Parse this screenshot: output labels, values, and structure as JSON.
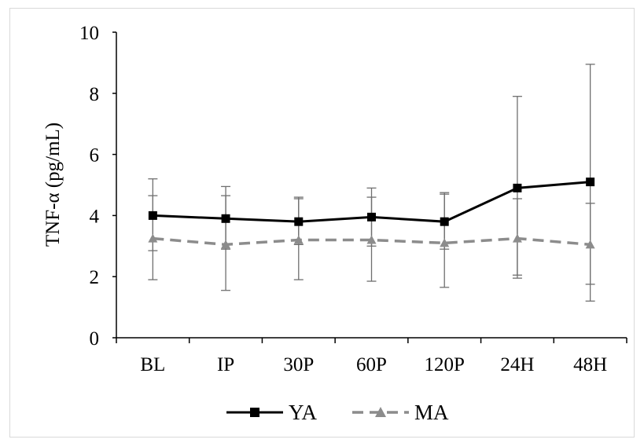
{
  "chart_data": {
    "type": "line",
    "ylabel": "TNF-α (pg/mL)",
    "xlabel": "",
    "ylim": [
      0,
      10
    ],
    "yticks": [
      0,
      2,
      4,
      6,
      8,
      10
    ],
    "categories": [
      "BL",
      "IP",
      "30P",
      "60P",
      "120P",
      "24H",
      "48H"
    ],
    "grid": false,
    "legend_position": "bottom",
    "series": [
      {
        "name": "YA",
        "color": "#000000",
        "line_style": "solid",
        "marker": "square",
        "values": [
          4.0,
          3.9,
          3.8,
          3.95,
          3.8,
          4.9,
          5.1
        ],
        "error_upper": [
          5.2,
          4.95,
          4.55,
          4.9,
          4.75,
          7.9,
          8.95
        ],
        "error_lower": [
          2.85,
          2.9,
          3.05,
          3.0,
          2.9,
          1.95,
          1.75
        ]
      },
      {
        "name": "MA",
        "color": "#8c8c8c",
        "line_style": "dashed",
        "marker": "triangle",
        "values": [
          3.25,
          3.05,
          3.2,
          3.2,
          3.1,
          3.25,
          3.05
        ],
        "error_upper": [
          4.65,
          4.65,
          4.6,
          4.6,
          4.7,
          4.55,
          4.4
        ],
        "error_lower": [
          1.9,
          1.55,
          1.9,
          1.85,
          1.65,
          2.05,
          1.2
        ]
      }
    ]
  }
}
